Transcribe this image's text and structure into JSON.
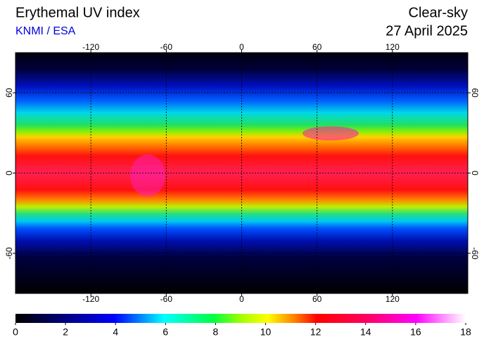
{
  "chart_data": {
    "type": "map",
    "title": "Erythemal UV index",
    "subtitle": "KNMI / ESA",
    "condition": "Clear-sky",
    "date": "27 April 2025",
    "xlim": [
      -180,
      180
    ],
    "ylim": [
      -90,
      90
    ],
    "xticks": [
      -120,
      -60,
      0,
      60,
      120
    ],
    "yticks": [
      60,
      0,
      -60
    ],
    "grid": true,
    "colorbar": {
      "lim": [
        0,
        18
      ],
      "ticks": [
        0,
        2,
        4,
        6,
        8,
        10,
        12,
        14,
        16,
        18
      ]
    }
  }
}
